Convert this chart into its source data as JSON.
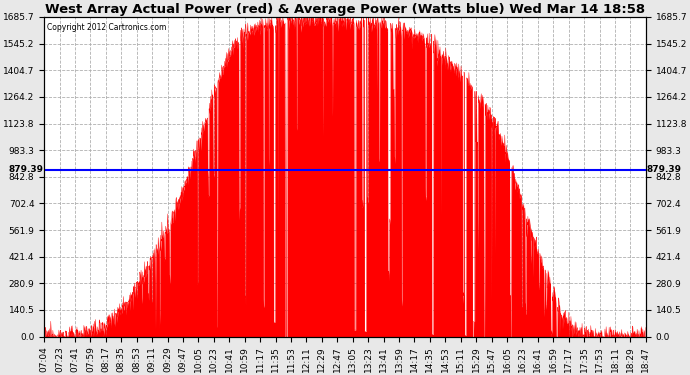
{
  "title": "West Array Actual Power (red) & Average Power (Watts blue) Wed Mar 14 18:58",
  "copyright": "Copyright 2012 Cartronics.com",
  "average_value": 879.39,
  "y_max": 1685.7,
  "y_min": 0.0,
  "y_ticks": [
    0.0,
    140.5,
    280.9,
    421.4,
    561.9,
    702.4,
    842.8,
    983.3,
    1123.8,
    1264.2,
    1404.7,
    1545.2,
    1685.7
  ],
  "x_labels": [
    "07:04",
    "07:23",
    "07:41",
    "07:59",
    "08:17",
    "08:35",
    "08:53",
    "09:11",
    "09:29",
    "09:47",
    "10:05",
    "10:23",
    "10:41",
    "10:59",
    "11:17",
    "11:35",
    "11:53",
    "12:11",
    "12:29",
    "12:47",
    "13:05",
    "13:23",
    "13:41",
    "13:59",
    "14:17",
    "14:35",
    "14:53",
    "15:11",
    "15:29",
    "15:47",
    "16:05",
    "16:23",
    "16:41",
    "16:59",
    "17:17",
    "17:35",
    "17:53",
    "18:11",
    "18:29",
    "18:47"
  ],
  "background_color": "#e8e8e8",
  "plot_bg_color": "#ffffff",
  "fill_color": "#ff0000",
  "line_color": "#0000ff",
  "grid_color": "#b0b0b0",
  "title_fontsize": 9.5,
  "tick_fontsize": 6.5,
  "label_avg_left": "879.39",
  "label_avg_right": "879.39",
  "peak_envelope": [
    0,
    0,
    5,
    15,
    30,
    60,
    130,
    200,
    310,
    430,
    560,
    720,
    900,
    1100,
    1320,
    1480,
    1580,
    1620,
    1640,
    1655,
    1665,
    1670,
    1672,
    1670,
    1665,
    1660,
    1658,
    1650,
    1640,
    1630,
    1600,
    1560,
    1500,
    1440,
    1380,
    1300,
    1200,
    1080,
    900,
    680,
    480,
    300,
    140,
    40,
    10,
    0,
    0,
    0,
    0,
    0
  ],
  "noise_seed": 12345,
  "n_fine": 2000
}
